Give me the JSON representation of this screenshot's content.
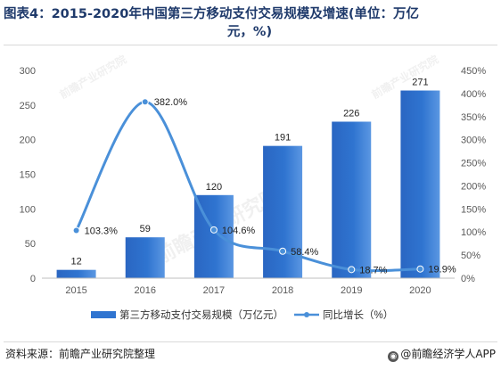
{
  "title": {
    "line1": "图表4：2015-2020年中国第三方移动支付交易规模及增速(单位：万亿",
    "line2": "元，%)"
  },
  "footer": {
    "source": "资料来源：前瞻产业研究院整理",
    "brand": "@前瞻经济学人APP"
  },
  "watermark": "前瞻产业研究院",
  "colors": {
    "bar": "#2f74d0",
    "line": "#4a90d9",
    "axis_text": "#595959"
  },
  "chart_data": {
    "type": "bar+line",
    "title": "2015-2020年中国第三方移动支付交易规模及增速(单位：万亿元，%)",
    "categories": [
      "2015",
      "2016",
      "2017",
      "2018",
      "2019",
      "2020"
    ],
    "series": [
      {
        "name": "第三方移动支付交易规模（万亿元）",
        "type": "bar",
        "axis": "left",
        "values": [
          12,
          59,
          120,
          191,
          226,
          271
        ],
        "labels": [
          "12",
          "59",
          "120",
          "191",
          "226",
          "271"
        ]
      },
      {
        "name": "同比增长（%）",
        "type": "line",
        "axis": "right",
        "values": [
          103.3,
          382.0,
          104.6,
          58.4,
          18.7,
          19.9
        ],
        "labels": [
          "103.3%",
          "382.0%",
          "104.6%",
          "58.4%",
          "18.7%",
          "19.9%"
        ]
      }
    ],
    "y_left": {
      "lim": [
        0,
        300
      ],
      "ticks": [
        "0",
        "50",
        "100",
        "150",
        "200",
        "250",
        "300"
      ]
    },
    "y_right": {
      "lim": [
        0,
        450
      ],
      "ticks": [
        "0%",
        "50%",
        "100%",
        "150%",
        "200%",
        "250%",
        "300%",
        "350%",
        "400%",
        "450%"
      ]
    },
    "grid": false,
    "legend": "bottom-center"
  }
}
